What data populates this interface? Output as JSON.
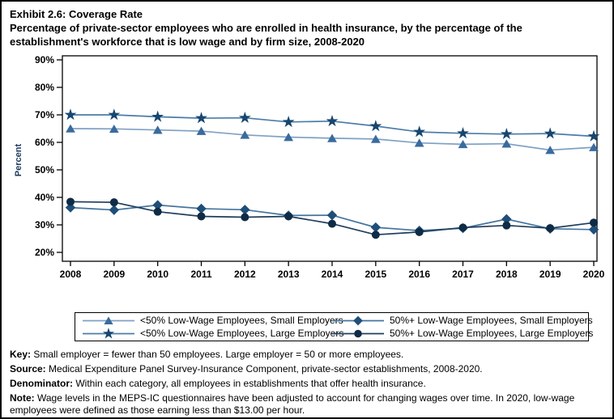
{
  "header": {
    "title": "Exhibit 2.6: Coverage Rate",
    "subtitle_line1": "Percentage of private-sector employees who are enrolled in health insurance, by the percentage of the",
    "subtitle_line2": "establishment's workforce that is low wage and by firm size, 2008-2020"
  },
  "chart_data": {
    "type": "line",
    "title": "Exhibit 2.6: Coverage Rate",
    "subtitle": "Percentage of private-sector employees who are enrolled in health insurance, by the percentage of the establishment's workforce that is low wage and by firm size, 2008-2020",
    "xlabel": "",
    "ylabel": "Percent",
    "ylim": [
      20,
      90
    ],
    "ytick_step": 10,
    "ytick_suffix": "%",
    "grid": false,
    "legend_position": "bottom-box",
    "x": [
      2008,
      2009,
      2010,
      2011,
      2012,
      2013,
      2014,
      2015,
      2016,
      2017,
      2018,
      2019,
      2020
    ],
    "series": [
      {
        "id": "small_lt50",
        "name": "<50% Low-Wage Employees, Small Employers",
        "marker": "triangle",
        "marker_color": "#3A6B9E",
        "line_color": "#7FA1C4",
        "values": [
          65.0,
          64.9,
          64.5,
          64.1,
          62.7,
          61.9,
          61.5,
          61.2,
          59.8,
          59.3,
          59.5,
          57.2,
          58.2
        ]
      },
      {
        "id": "large_lt50",
        "name": "<50% Low-Wage Employees, Large Employers",
        "marker": "star",
        "marker_color": "#17466F",
        "line_color": "#4B7CA8",
        "values": [
          70.0,
          70.0,
          69.3,
          68.8,
          68.9,
          67.4,
          67.7,
          65.9,
          63.8,
          63.3,
          63.0,
          63.2,
          62.2
        ]
      },
      {
        "id": "small_50plus",
        "name": "50%+ Low-Wage Employees, Small Employers",
        "marker": "diamond",
        "marker_color": "#1F4E79",
        "line_color": "#44749E",
        "values": [
          36.3,
          35.4,
          37.2,
          35.9,
          35.5,
          33.4,
          33.5,
          29.1,
          27.9,
          28.8,
          32.1,
          28.6,
          28.3
        ]
      },
      {
        "id": "large_50plus",
        "name": "50%+ Low-Wage Employees, Large Employers",
        "marker": "circle",
        "marker_color": "#0F2B45",
        "line_color": "#1E3D5C",
        "values": [
          38.4,
          38.2,
          34.8,
          33.1,
          32.8,
          33.1,
          30.4,
          26.4,
          27.4,
          29.0,
          29.8,
          28.8,
          30.8
        ]
      }
    ],
    "legend_rows": [
      [
        "small_lt50",
        "small_50plus"
      ],
      [
        "large_lt50",
        "large_50plus"
      ]
    ]
  },
  "notes": [
    {
      "label": "Key:",
      "text": " Small employer = fewer than 50 employees. Large employer = 50 or more employees."
    },
    {
      "label": "Source:",
      "text": " Medical Expenditure Panel Survey-Insurance Component, private-sector establishments, 2008-2020."
    },
    {
      "label": "Denominator:",
      "text": " Within each category, all employees in establishments that offer health insurance."
    },
    {
      "label": "Note:",
      "text": " Wage levels in the MEPS-IC questionnaires have been adjusted to account for changing wages over time. In 2020, low-wage employees were defined as those earning less than $13.00 per hour."
    }
  ]
}
